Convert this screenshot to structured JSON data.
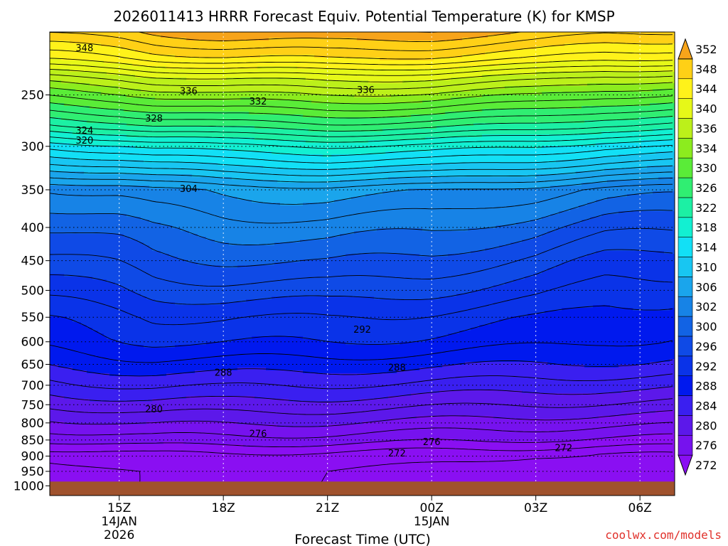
{
  "chart_data": {
    "type": "heatmap",
    "title": "2026011413 HRRR Forecast Equiv. Potential Temperature (K) for KMSP",
    "xlabel": "Forecast Time (UTC)",
    "ylabel": "",
    "credit": "coolwx.com/models",
    "x_range_hours_from_start": [
      -2.0,
      16.0
    ],
    "y_range_hpa": [
      200,
      1035
    ],
    "y_scale": "log",
    "grid": true,
    "x_ticks": [
      {
        "label": "15Z",
        "sub1": "14JAN",
        "sub2": "2026",
        "h": 0
      },
      {
        "label": "18Z",
        "sub1": "",
        "sub2": "",
        "h": 3
      },
      {
        "label": "21Z",
        "sub1": "",
        "sub2": "",
        "h": 6
      },
      {
        "label": "00Z",
        "sub1": "15JAN",
        "sub2": "",
        "h": 9
      },
      {
        "label": "03Z",
        "sub1": "",
        "sub2": "",
        "h": 12
      },
      {
        "label": "06Z",
        "sub1": "",
        "sub2": "",
        "h": 15
      }
    ],
    "y_ticks": [
      250,
      300,
      350,
      400,
      450,
      500,
      550,
      600,
      650,
      700,
      750,
      800,
      850,
      900,
      950,
      1000
    ],
    "ground_pressure_hpa": 985,
    "colorbar": {
      "levels": [
        272,
        276,
        280,
        284,
        288,
        292,
        296,
        300,
        302,
        306,
        310,
        314,
        318,
        322,
        326,
        330,
        334,
        336,
        340,
        344,
        348,
        352
      ],
      "labels": [
        "272",
        "276",
        "280",
        "284",
        "288",
        "292",
        "296",
        "300",
        "302",
        "306",
        "310",
        "314",
        "318",
        "322",
        "326",
        "330",
        "334",
        "336",
        "340",
        "344",
        "348",
        "352"
      ],
      "colors": [
        "#8a0ff2",
        "#7612ee",
        "#5c18ea",
        "#3a1ff0",
        "#0019ee",
        "#0a33e8",
        "#0f4ae6",
        "#1263e4",
        "#1783e6",
        "#1aa5ec",
        "#18c6f2",
        "#12e0f6",
        "#12f0d2",
        "#1cf0a4",
        "#30ee72",
        "#5aec38",
        "#8cec1e",
        "#bcf01a",
        "#e6f818",
        "#fff21a",
        "#ffd016",
        "#f7a41a"
      ]
    },
    "profile": [
      {
        "p": 985,
        "theta_e": 271
      },
      {
        "p": 950,
        "theta_e": 271
      },
      {
        "p": 900,
        "theta_e": 272
      },
      {
        "p": 850,
        "theta_e": 276
      },
      {
        "p": 800,
        "theta_e": 279
      },
      {
        "p": 750,
        "theta_e": 282
      },
      {
        "p": 700,
        "theta_e": 285
      },
      {
        "p": 650,
        "theta_e": 288
      },
      {
        "p": 600,
        "theta_e": 291
      },
      {
        "p": 550,
        "theta_e": 293
      },
      {
        "p": 500,
        "theta_e": 296
      },
      {
        "p": 450,
        "theta_e": 299
      },
      {
        "p": 400,
        "theta_e": 302
      },
      {
        "p": 350,
        "theta_e": 306
      },
      {
        "p": 320,
        "theta_e": 314
      },
      {
        "p": 300,
        "theta_e": 319
      },
      {
        "p": 280,
        "theta_e": 326
      },
      {
        "p": 260,
        "theta_e": 332
      },
      {
        "p": 250,
        "theta_e": 335
      },
      {
        "p": 235,
        "theta_e": 340
      },
      {
        "p": 220,
        "theta_e": 347
      },
      {
        "p": 210,
        "theta_e": 350
      },
      {
        "p": 200,
        "theta_e": 353
      }
    ],
    "time_anomaly": {
      "hours": [
        -2,
        0,
        1,
        3,
        6,
        9,
        12,
        14,
        16
      ],
      "low_shift_K": [
        0.3,
        1.0,
        1.3,
        1.3,
        1.0,
        0.5,
        0.0,
        -0.3,
        -0.5
      ],
      "mid_shift_K": [
        -1.5,
        -0.5,
        0.5,
        1.0,
        1.3,
        0.3,
        -1.5,
        -3.5,
        -4.0
      ],
      "upper_shift_K": [
        -2.5,
        -1.5,
        -0.5,
        0.5,
        1.0,
        0.5,
        -1.0,
        -2.5,
        -3.0
      ]
    },
    "contour_interval_K": 2,
    "contour_labels": [
      {
        "text": "348",
        "h": -1.0,
        "p": 212
      },
      {
        "text": "336",
        "h": 2.0,
        "p": 247
      },
      {
        "text": "332",
        "h": 4.0,
        "p": 256
      },
      {
        "text": "336",
        "h": 7.1,
        "p": 246
      },
      {
        "text": "328",
        "h": 1.0,
        "p": 272
      },
      {
        "text": "324",
        "h": -1.0,
        "p": 284
      },
      {
        "text": "320",
        "h": -1.0,
        "p": 294
      },
      {
        "text": "304",
        "h": 2.0,
        "p": 349
      },
      {
        "text": "292",
        "h": 7.0,
        "p": 575
      },
      {
        "text": "288",
        "h": 3.0,
        "p": 670
      },
      {
        "text": "288",
        "h": 8.0,
        "p": 658
      },
      {
        "text": "280",
        "h": 1.0,
        "p": 763
      },
      {
        "text": "276",
        "h": 4.0,
        "p": 832
      },
      {
        "text": "276",
        "h": 9.0,
        "p": 857
      },
      {
        "text": "272",
        "h": 8.0,
        "p": 892
      },
      {
        "text": "272",
        "h": 12.8,
        "p": 875
      }
    ]
  }
}
